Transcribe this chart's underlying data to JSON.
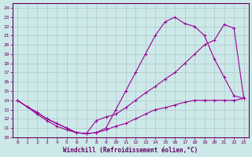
{
  "xlabel": "Windchill (Refroidissement éolien,°C)",
  "background_color": "#cce8e8",
  "grid_color": "#b0c8c8",
  "line_color": "#990099",
  "xlim": [
    -0.5,
    23.5
  ],
  "ylim": [
    10,
    24.5
  ],
  "xticks": [
    0,
    1,
    2,
    3,
    4,
    5,
    6,
    7,
    8,
    9,
    10,
    11,
    12,
    13,
    14,
    15,
    16,
    17,
    18,
    19,
    20,
    21,
    22,
    23
  ],
  "yticks": [
    10,
    11,
    12,
    13,
    14,
    15,
    16,
    17,
    18,
    19,
    20,
    21,
    22,
    23,
    24
  ],
  "line1_x": [
    0,
    1,
    2,
    3,
    4,
    5,
    6,
    7,
    8,
    9,
    10,
    11,
    12,
    13,
    14,
    15,
    16,
    17,
    18,
    19,
    20,
    21,
    22,
    23
  ],
  "line1_y": [
    14,
    13.3,
    12.7,
    12.0,
    11.5,
    11.0,
    10.5,
    10.4,
    10.5,
    11.0,
    13.0,
    15.0,
    17.0,
    19.0,
    21.0,
    22.5,
    23.0,
    22.3,
    22.0,
    21.0,
    18.5,
    16.5,
    14.5,
    14.2
  ],
  "line2_x": [
    0,
    1,
    2,
    3,
    4,
    5,
    6,
    7,
    8,
    9,
    10,
    11,
    12,
    13,
    14,
    15,
    16,
    17,
    18,
    19,
    20,
    21,
    22,
    23
  ],
  "line2_y": [
    14,
    13.3,
    12.7,
    12.0,
    11.5,
    11.0,
    10.5,
    10.4,
    11.8,
    12.2,
    12.5,
    13.2,
    14.0,
    14.8,
    15.5,
    16.3,
    17.0,
    18.0,
    19.0,
    20.0,
    20.5,
    22.2,
    21.8,
    14.2
  ],
  "line3_x": [
    0,
    1,
    2,
    3,
    4,
    5,
    6,
    7,
    8,
    9,
    10,
    11,
    12,
    13,
    14,
    15,
    16,
    17,
    18,
    19,
    20,
    21,
    22,
    23
  ],
  "line3_y": [
    14,
    13.3,
    12.5,
    11.8,
    11.2,
    10.8,
    10.5,
    10.4,
    10.5,
    10.8,
    11.2,
    11.5,
    12.0,
    12.5,
    13.0,
    13.2,
    13.5,
    13.8,
    14.0,
    14.0,
    14.0,
    14.0,
    14.0,
    14.2
  ]
}
